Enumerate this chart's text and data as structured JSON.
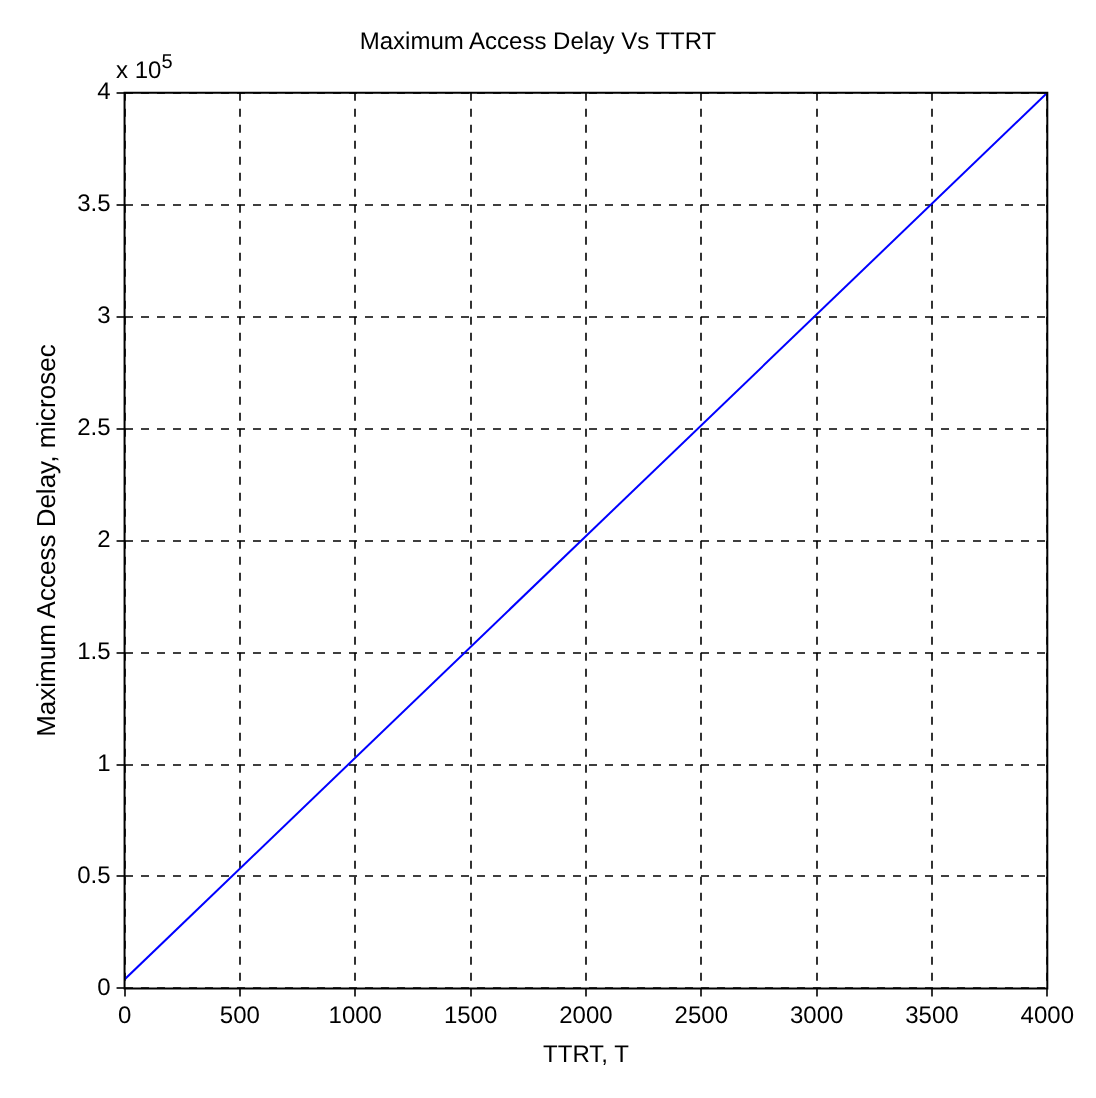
{
  "chart_data": {
    "type": "line",
    "title": "Maximum Access Delay Vs TTRT",
    "xlabel": "TTRT, T",
    "ylabel": "Maximum Access Delay, microsec",
    "annotations": [
      "x 10$^{5}$"
    ],
    "x": [
      0,
      4000
    ],
    "series": [
      {
        "color": "#0000ff",
        "values": [
          0.04,
          4
        ]
      }
    ],
    "xlim": [
      0,
      4000
    ],
    "xticks": [
      0,
      500,
      1000,
      1500,
      2000,
      2500,
      3000,
      3500,
      4000
    ],
    "ylim": [
      0,
      4
    ],
    "yticks": [
      0,
      0.5,
      1,
      1.5,
      2,
      2.5,
      3,
      3.5,
      4
    ],
    "grid": true,
    "marker": "none",
    "line_style": "solid",
    "legend": false
  }
}
